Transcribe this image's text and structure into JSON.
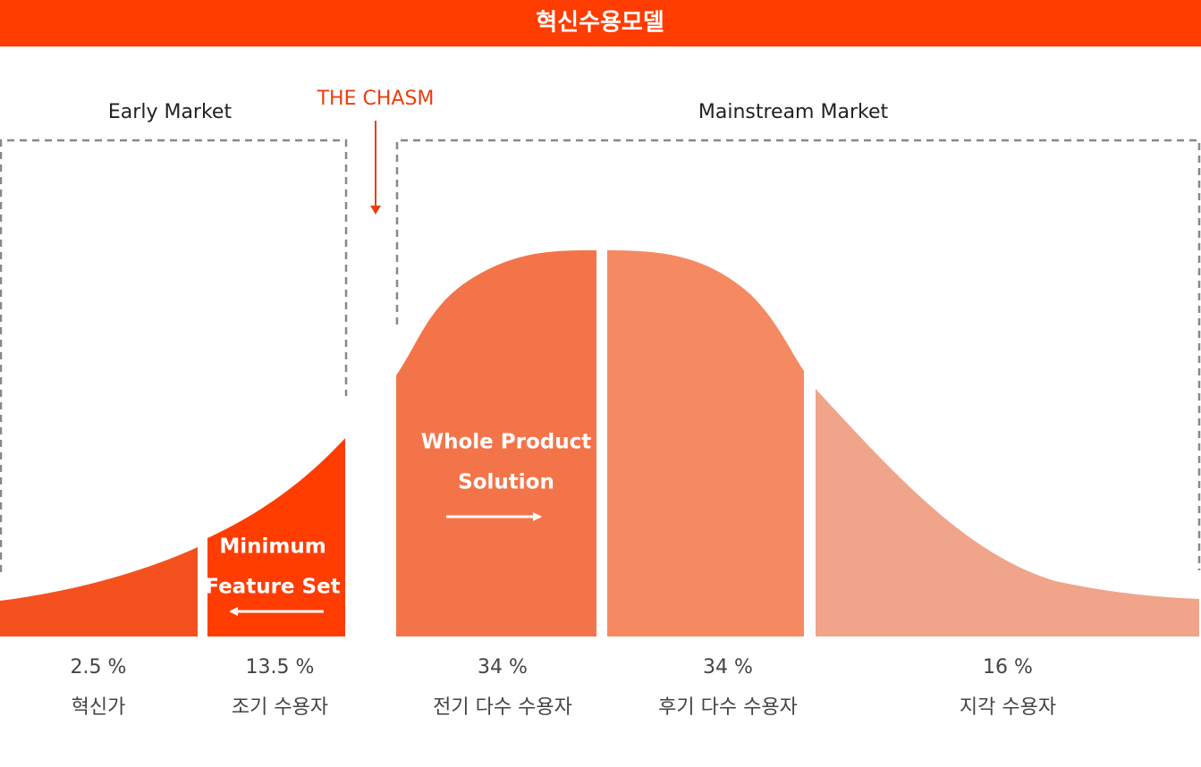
{
  "header": {
    "title": "혁신수용모델"
  },
  "markets": {
    "early": "Early Market",
    "chasm": "THE CHASM",
    "mainstream": "Mainstream Market"
  },
  "callouts": {
    "minimum": [
      "Minimum",
      "Feature Set"
    ],
    "whole": [
      "Whole Product",
      "Solution"
    ]
  },
  "segments": [
    {
      "percent": "2.5 %",
      "name": "혁신가"
    },
    {
      "percent": "13.5 %",
      "name": "조기 수용자"
    },
    {
      "percent": "34 %",
      "name": "전기 다수 수용자"
    },
    {
      "percent": "34 %",
      "name": "후기 다수 수용자"
    },
    {
      "percent": "16 %",
      "name": "지각 수용자"
    }
  ]
}
